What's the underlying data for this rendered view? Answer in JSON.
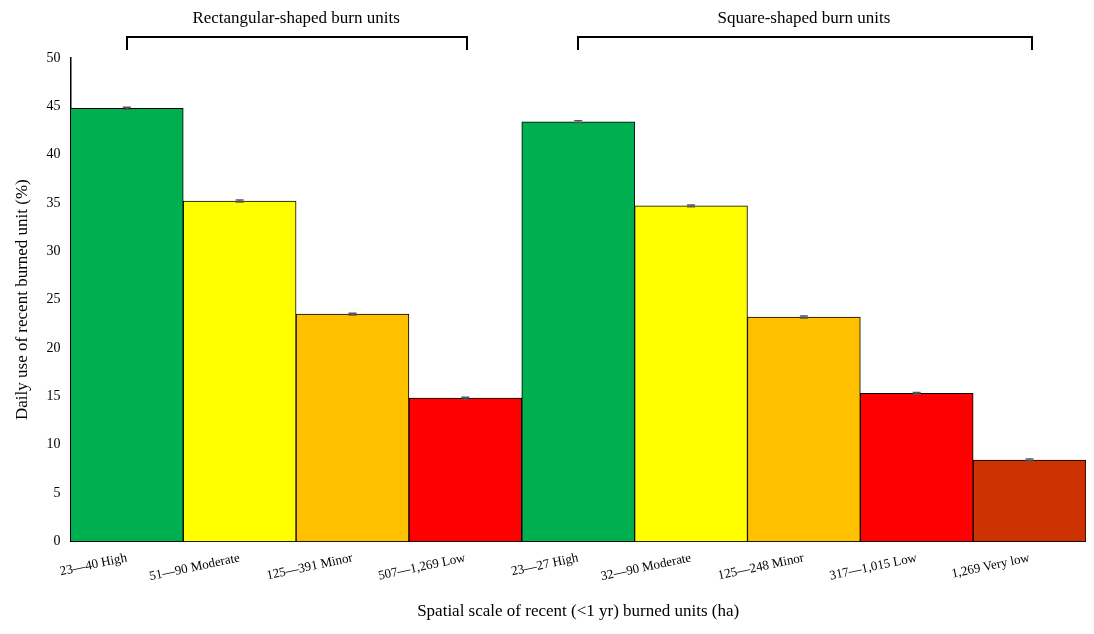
{
  "chart_data": {
    "type": "bar",
    "xlabel": "Spatial scale of recent (<1 yr) burned units (ha)",
    "ylabel": "Daily use of recent burned unit (%)",
    "categories": [
      "23—40 High",
      "51—90 Moderate",
      "125—391 Minor",
      "507—1,269 Low",
      "23—27 High",
      "32—90 Moderate",
      "125—248 Minor",
      "317—1,015 Low",
      "1,269 Very low"
    ],
    "values": [
      44.8,
      35.2,
      23.5,
      14.8,
      43.4,
      34.7,
      23.2,
      15.3,
      8.4
    ],
    "errors": [
      0.1,
      0.1,
      0.1,
      0.1,
      0.1,
      0.1,
      0.1,
      0.1,
      0.1
    ],
    "colors": [
      "#00b050",
      "#ffff00",
      "#ffc000",
      "#ff0000",
      "#00b050",
      "#ffff00",
      "#ffc000",
      "#ff0000",
      "#cc3300"
    ],
    "ylim": [
      0,
      50
    ],
    "yticks": [
      0,
      5,
      10,
      15,
      20,
      25,
      30,
      35,
      40,
      45,
      50
    ],
    "grid": false,
    "legend": false,
    "annotations": [
      "Rectangular-shaped burn units",
      "Square-shaped burn units"
    ]
  }
}
